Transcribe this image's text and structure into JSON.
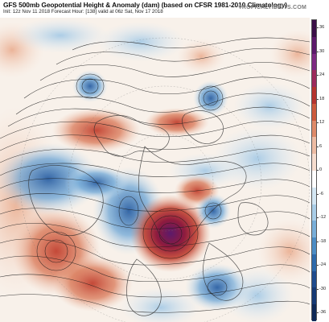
{
  "header": {
    "title": "GFS 500mb Geopotential Height & Anomaly (dam) (based on CFSR 1981-2010 Climatology)",
    "subtitle": "Init: 12z Nov 11 2018   Forecast Hour: [138]   valid at 06z Sat, Nov 17 2018",
    "brand": "TROPICALTIDBITS.COM"
  },
  "colorbar": {
    "labels": [
      "36",
      "30",
      "24",
      "18",
      "12",
      "6",
      "0",
      "-6",
      "-12",
      "-18",
      "-24",
      "-30",
      "-36"
    ],
    "colors": [
      "#3b0f48",
      "#5c1a6b",
      "#7d2a82",
      "#9c2a5c",
      "#b5342f",
      "#cc5a3d",
      "#de8a6a",
      "#edbca4",
      "#f6ddcf",
      "#ffffff",
      "#d3e6f3",
      "#a9cde7",
      "#78aed8",
      "#4b8cc4",
      "#2d6aab",
      "#1f4c8e",
      "#163a75",
      "#0f2a58"
    ]
  },
  "colors": {
    "positive": "#d97755",
    "strong_positive": "#8e1b3e",
    "negative": "#6da6d6",
    "strong_negative": "#2a5fa3",
    "contour": "#1a1a1a"
  }
}
